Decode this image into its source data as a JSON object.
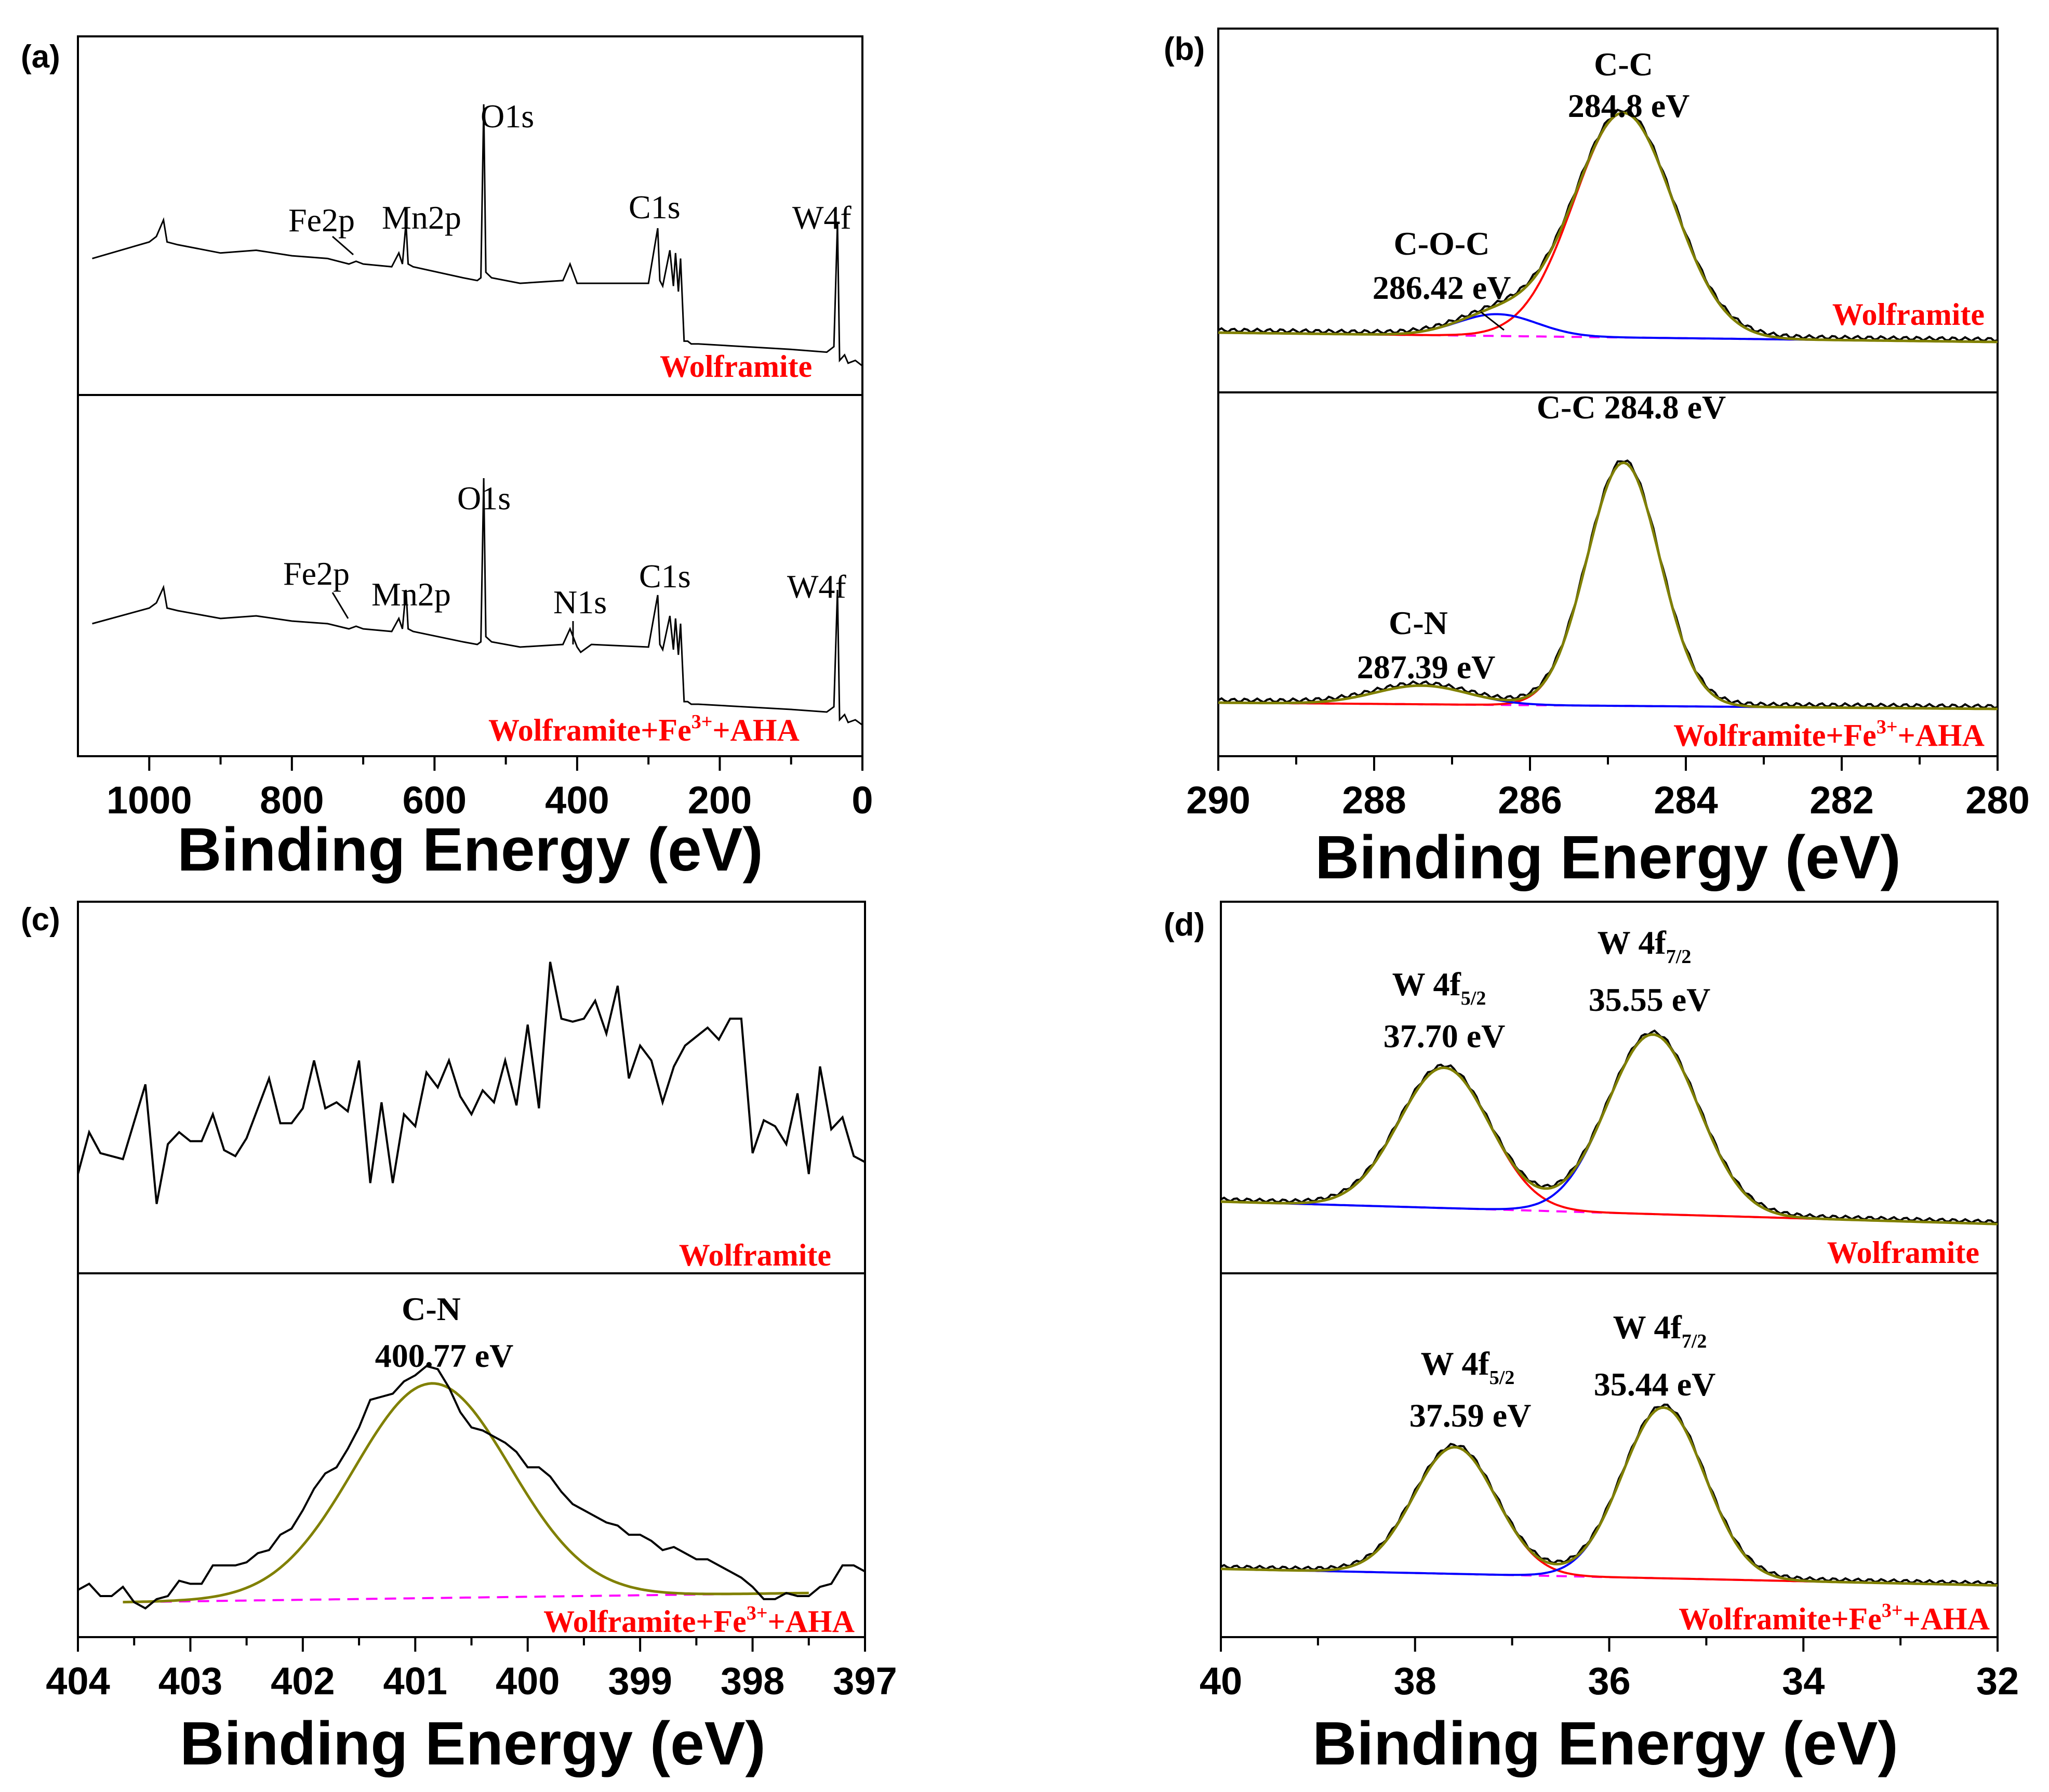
{
  "colors": {
    "raw": "#000000",
    "fit": "#808000",
    "peak1": "#ff0000",
    "peak2": "#0000ff",
    "baseline": "#ff00ff",
    "label": "#ff0000"
  },
  "chart_data": [
    {
      "id": "a",
      "panel_label": "(a)",
      "type": "line",
      "xlabel": "Binding Energy (eV)",
      "xlim": [
        1100,
        0
      ],
      "xticks": [
        1000,
        800,
        600,
        400,
        200,
        0
      ],
      "subplots": [
        {
          "label": "Wolframite",
          "series": [
            {
              "name": "survey",
              "x": [
                1080,
                1000,
                990,
                980,
                975,
                960,
                900,
                850,
                800,
                750,
                720,
                710,
                700,
                660,
                650,
                645,
                640,
                637,
                630,
                560,
                540,
                535,
                531,
                528,
                520,
                480,
                420,
                410,
                400,
                300,
                287,
                284,
                280,
                270,
                265,
                262,
                258,
                255,
                250,
                245,
                240,
                230,
                100,
                50,
                40,
                35,
                32,
                25,
                20,
                10,
                0
              ],
              "y": [
                0.42,
                0.48,
                0.5,
                0.56,
                0.48,
                0.47,
                0.44,
                0.45,
                0.43,
                0.42,
                0.4,
                0.41,
                0.4,
                0.39,
                0.44,
                0.4,
                0.55,
                0.4,
                0.39,
                0.35,
                0.34,
                0.35,
                0.98,
                0.37,
                0.35,
                0.33,
                0.34,
                0.4,
                0.33,
                0.33,
                0.53,
                0.34,
                0.32,
                0.45,
                0.32,
                0.44,
                0.3,
                0.42,
                0.12,
                0.12,
                0.11,
                0.11,
                0.09,
                0.08,
                0.1,
                0.55,
                0.05,
                0.07,
                0.04,
                0.05,
                0.03
              ]
            }
          ]
        },
        {
          "label": "Wolframite+Fe3+ +AHA",
          "series": [
            {
              "name": "survey",
              "x": [
                1080,
                1000,
                990,
                980,
                975,
                960,
                900,
                850,
                800,
                750,
                720,
                710,
                700,
                660,
                650,
                645,
                640,
                637,
                630,
                560,
                540,
                535,
                531,
                528,
                520,
                480,
                420,
                410,
                400,
                395,
                380,
                300,
                287,
                284,
                280,
                270,
                265,
                262,
                258,
                255,
                250,
                245,
                240,
                230,
                100,
                50,
                40,
                35,
                32,
                25,
                20,
                10,
                0
              ],
              "y": [
                0.42,
                0.48,
                0.5,
                0.56,
                0.48,
                0.47,
                0.44,
                0.45,
                0.43,
                0.42,
                0.4,
                0.41,
                0.4,
                0.39,
                0.44,
                0.4,
                0.55,
                0.4,
                0.39,
                0.35,
                0.34,
                0.35,
                0.98,
                0.37,
                0.35,
                0.33,
                0.34,
                0.4,
                0.33,
                0.31,
                0.34,
                0.33,
                0.53,
                0.34,
                0.32,
                0.45,
                0.32,
                0.44,
                0.3,
                0.42,
                0.12,
                0.12,
                0.11,
                0.11,
                0.09,
                0.08,
                0.1,
                0.55,
                0.05,
                0.07,
                0.04,
                0.05,
                0.03
              ]
            }
          ]
        }
      ],
      "annotations": [
        {
          "subplot": 0,
          "text": "O1s",
          "x": 531,
          "y": 0.98
        },
        {
          "subplot": 0,
          "text": "Fe2p",
          "x": 720,
          "y": 0.4,
          "arrow": true
        },
        {
          "subplot": 0,
          "text": "Mn2p",
          "x": 640,
          "y": 0.55
        },
        {
          "subplot": 0,
          "text": "C1s",
          "x": 284,
          "y": 0.53
        },
        {
          "subplot": 0,
          "text": "W4f",
          "x": 35,
          "y": 0.55
        },
        {
          "subplot": 1,
          "text": "O1s",
          "x": 531,
          "y": 0.98
        },
        {
          "subplot": 1,
          "text": "Fe2p",
          "x": 720,
          "y": 0.4,
          "arrow": true
        },
        {
          "subplot": 1,
          "text": "Mn2p",
          "x": 640,
          "y": 0.55
        },
        {
          "subplot": 1,
          "text": "N1s",
          "x": 400,
          "y": 0.33,
          "arrow": true
        },
        {
          "subplot": 1,
          "text": "C1s",
          "x": 284,
          "y": 0.53
        },
        {
          "subplot": 1,
          "text": "W4f",
          "x": 35,
          "y": 0.55
        }
      ]
    },
    {
      "id": "b",
      "panel_label": "(b)",
      "type": "line",
      "xlabel": "Binding Energy (eV)",
      "xlim": [
        290,
        280
      ],
      "xticks": [
        290,
        288,
        286,
        284,
        282,
        280
      ],
      "subplots": [
        {
          "label": "Wolframite",
          "baseline": [
            0.15,
            0.12
          ],
          "peaks": [
            {
              "name": "C-C",
              "center": 284.8,
              "height": 0.72,
              "width": 0.75
            },
            {
              "name": "C-O-C",
              "center": 286.42,
              "height": 0.07,
              "width": 0.6
            }
          ],
          "annotations": [
            {
              "line1": "C-C",
              "line2": "284.8 eV"
            },
            {
              "line1": "C-O-C",
              "line2": "286.42 eV"
            }
          ]
        },
        {
          "label": "Wolframite+Fe3+ +AHA",
          "baseline": [
            0.13,
            0.11
          ],
          "peaks": [
            {
              "name": "C-C",
              "center": 284.8,
              "height": 0.78,
              "width": 0.55
            },
            {
              "name": "C-N",
              "center": 287.39,
              "height": 0.06,
              "width": 0.7
            }
          ],
          "annotations": [
            {
              "line1": "C-C 284.8 eV"
            },
            {
              "line1": "C-N",
              "line2": "287.39 eV"
            }
          ]
        }
      ]
    },
    {
      "id": "c",
      "panel_label": "(c)",
      "type": "line",
      "xlabel": "Binding Energy (eV)",
      "xlim": [
        404,
        397
      ],
      "xticks": [
        404,
        403,
        402,
        401,
        400,
        399,
        398,
        397
      ],
      "subplots": [
        {
          "label": "Wolframite",
          "series": [
            {
              "name": "raw",
              "x": [
                404.0,
                403.9,
                403.8,
                403.6,
                403.4,
                403.3,
                403.2,
                403.1,
                403.0,
                402.9,
                402.8,
                402.7,
                402.6,
                402.5,
                402.3,
                402.2,
                402.1,
                402.0,
                401.9,
                401.8,
                401.7,
                401.6,
                401.5,
                401.4,
                401.3,
                401.2,
                401.1,
                401.0,
                400.9,
                400.8,
                400.7,
                400.6,
                400.5,
                400.4,
                400.3,
                400.2,
                400.1,
                400.0,
                399.9,
                399.8,
                399.7,
                399.6,
                399.5,
                399.4,
                399.3,
                399.2,
                399.1,
                399.0,
                398.9,
                398.8,
                398.7,
                398.6,
                398.5,
                398.4,
                398.3,
                398.2,
                398.1,
                398.0,
                397.9,
                397.8,
                397.7,
                397.6,
                397.5,
                397.4,
                397.3,
                397.2,
                397.1,
                397.0
              ],
              "y": [
                0.28,
                0.42,
                0.35,
                0.33,
                0.58,
                0.18,
                0.38,
                0.42,
                0.39,
                0.39,
                0.48,
                0.36,
                0.34,
                0.4,
                0.6,
                0.45,
                0.45,
                0.5,
                0.66,
                0.5,
                0.52,
                0.49,
                0.66,
                0.25,
                0.52,
                0.25,
                0.48,
                0.44,
                0.62,
                0.57,
                0.66,
                0.54,
                0.48,
                0.56,
                0.52,
                0.66,
                0.51,
                0.78,
                0.5,
                0.99,
                0.8,
                0.79,
                0.8,
                0.86,
                0.75,
                0.91,
                0.6,
                0.71,
                0.66,
                0.52,
                0.64,
                0.71,
                0.74,
                0.77,
                0.73,
                0.8,
                0.8,
                0.35,
                0.46,
                0.44,
                0.38,
                0.55,
                0.28,
                0.64,
                0.43,
                0.47,
                0.34,
                0.32
              ]
            }
          ]
        },
        {
          "label": "Wolframite+Fe3+ +AHA",
          "series": [
            {
              "name": "raw",
              "x": [
                404.0,
                403.9,
                403.8,
                403.7,
                403.6,
                403.5,
                403.4,
                403.3,
                403.2,
                403.1,
                403.0,
                402.9,
                402.8,
                402.7,
                402.6,
                402.5,
                402.4,
                402.3,
                402.2,
                402.1,
                402.0,
                401.9,
                401.8,
                401.7,
                401.6,
                401.5,
                401.4,
                401.3,
                401.2,
                401.1,
                401.0,
                400.9,
                400.8,
                400.7,
                400.6,
                400.5,
                400.4,
                400.3,
                400.2,
                400.1,
                400.0,
                399.9,
                399.8,
                399.7,
                399.6,
                399.5,
                399.4,
                399.3,
                399.2,
                399.1,
                399.0,
                398.9,
                398.8,
                398.7,
                398.6,
                398.5,
                398.4,
                398.3,
                398.2,
                398.1,
                398.0,
                397.9,
                397.8,
                397.7,
                397.6,
                397.5,
                397.4,
                397.3,
                397.2,
                397.1,
                397.0
              ],
              "y": [
                0.12,
                0.14,
                0.1,
                0.1,
                0.13,
                0.08,
                0.06,
                0.09,
                0.1,
                0.15,
                0.14,
                0.14,
                0.2,
                0.2,
                0.2,
                0.21,
                0.24,
                0.25,
                0.3,
                0.32,
                0.38,
                0.45,
                0.5,
                0.52,
                0.58,
                0.65,
                0.74,
                0.75,
                0.76,
                0.8,
                0.82,
                0.85,
                0.84,
                0.78,
                0.7,
                0.65,
                0.64,
                0.62,
                0.6,
                0.57,
                0.52,
                0.52,
                0.49,
                0.44,
                0.4,
                0.38,
                0.36,
                0.34,
                0.33,
                0.3,
                0.3,
                0.28,
                0.25,
                0.26,
                0.24,
                0.22,
                0.22,
                0.2,
                0.18,
                0.16,
                0.13,
                0.09,
                0.09,
                0.11,
                0.1,
                0.1,
                0.13,
                0.14,
                0.2,
                0.2,
                0.18
              ]
            },
            {
              "name": "fit",
              "type": "gaussian",
              "center": 400.85,
              "height": 0.7,
              "width": 0.85,
              "baseline": [
                0.08,
                0.11
              ]
            }
          ],
          "annotations": [
            {
              "line1": "C-N",
              "line2": "400.77 eV"
            }
          ]
        }
      ]
    },
    {
      "id": "d",
      "panel_label": "(d)",
      "type": "line",
      "xlabel": "Binding Energy (eV)",
      "xlim": [
        40,
        32
      ],
      "xticks": [
        40,
        38,
        36,
        34,
        32
      ],
      "subplots": [
        {
          "label": "Wolframite",
          "baseline": [
            0.2,
            0.12
          ],
          "peaks": [
            {
              "name": "W 4f5/2",
              "center": 37.7,
              "height": 0.5,
              "width": 0.55
            },
            {
              "name": "W 4f7/2",
              "center": 35.55,
              "height": 0.64,
              "width": 0.55
            }
          ],
          "annotations": [
            {
              "line1": "W 4f",
              "sub": "5/2",
              "line2": "37.70 eV"
            },
            {
              "line1": "W 4f",
              "sub": "7/2",
              "line2": "35.55 eV"
            }
          ]
        },
        {
          "label": "Wolframite+Fe3+ +AHA",
          "baseline": [
            0.21,
            0.15
          ],
          "peaks": [
            {
              "name": "W 4f5/2",
              "center": 37.59,
              "height": 0.46,
              "width": 0.5
            },
            {
              "name": "W 4f7/2",
              "center": 35.44,
              "height": 0.62,
              "width": 0.5
            }
          ],
          "annotations": [
            {
              "line1": "W 4f",
              "sub": "5/2",
              "line2": "37.59 eV"
            },
            {
              "line1": "W 4f",
              "sub": "7/2",
              "line2": "35.44 eV"
            }
          ]
        }
      ]
    }
  ]
}
